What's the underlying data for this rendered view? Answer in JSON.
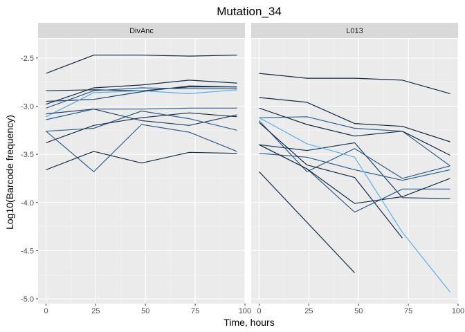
{
  "chart_data": {
    "type": "line",
    "title": "Mutation_34",
    "xlabel": "Time, hours",
    "ylabel": "Log10(Barcode frequency)",
    "xlim": [
      -4,
      100
    ],
    "ylim": [
      -5.05,
      -2.3
    ],
    "x_ticks": [
      0,
      25,
      50,
      75,
      100
    ],
    "y_ticks": [
      -2.5,
      -3.0,
      -3.5,
      -4.0,
      -4.5,
      -5.0
    ],
    "x_tick_labels": [
      "0",
      "25",
      "50",
      "75",
      "100"
    ],
    "y_tick_labels": [
      "-2.5",
      "-3.0",
      "-3.5",
      "-4.0",
      "-4.5",
      "-5.0"
    ],
    "grid": true,
    "legend": "none",
    "colors": {
      "panel_bg": "#ebebeb",
      "strip_bg": "#d9d9d9",
      "grid_major": "#ffffff",
      "dark_line": "#132b43",
      "mid_line": "#2d5e8a",
      "light_line": "#56b1f7"
    },
    "panels": [
      {
        "label": "DivAnc",
        "series": [
          {
            "color": "#132b43",
            "x": [
              0,
              24,
              48,
              72,
              96
            ],
            "y": [
              -2.66,
              -2.47,
              -2.47,
              -2.48,
              -2.47
            ]
          },
          {
            "color": "#132b43",
            "x": [
              0,
              24,
              48,
              72,
              96
            ],
            "y": [
              -2.84,
              -2.83,
              -2.84,
              -2.8,
              -2.8
            ]
          },
          {
            "color": "#132b43",
            "x": [
              0,
              24,
              48,
              72,
              96
            ],
            "y": [
              -2.98,
              -2.81,
              -2.78,
              -2.73,
              -2.76
            ]
          },
          {
            "color": "#1f4060",
            "x": [
              0,
              24,
              48,
              72,
              96
            ],
            "y": [
              -2.95,
              -2.93,
              -2.85,
              -2.79,
              -2.8
            ]
          },
          {
            "color": "#2d5e8a",
            "x": [
              0,
              24,
              48,
              72,
              96
            ],
            "y": [
              -3.02,
              -2.84,
              -2.81,
              -2.82,
              -2.82
            ]
          },
          {
            "color": "#5aa9e6",
            "x": [
              0,
              24,
              48,
              72,
              96
            ],
            "y": [
              -3.11,
              -2.86,
              -2.84,
              -2.87,
              -2.83
            ]
          },
          {
            "color": "#2d5e8a",
            "x": [
              0,
              24,
              48,
              72,
              96
            ],
            "y": [
              -3.14,
              -3.03,
              -3.03,
              -3.02,
              -3.02
            ]
          },
          {
            "color": "#1f4060",
            "x": [
              0,
              24,
              48,
              72,
              96
            ],
            "y": [
              -3.08,
              -3.03,
              -3.15,
              -3.2,
              -3.09
            ]
          },
          {
            "color": "#2d5e8a",
            "x": [
              0,
              24,
              48,
              72,
              96
            ],
            "y": [
              -3.26,
              -3.23,
              -3.05,
              -3.13,
              -3.25
            ]
          },
          {
            "color": "#132b43",
            "x": [
              0,
              24,
              48,
              72,
              96
            ],
            "y": [
              -3.38,
              -3.2,
              -3.12,
              -3.07,
              -3.11
            ]
          },
          {
            "color": "#2d5e8a",
            "x": [
              0,
              24,
              48,
              72,
              96
            ],
            "y": [
              -3.26,
              -3.68,
              -3.19,
              -3.27,
              -3.47
            ]
          },
          {
            "color": "#132b43",
            "x": [
              0,
              24,
              48,
              72,
              96
            ],
            "y": [
              -3.66,
              -3.47,
              -3.59,
              -3.48,
              -3.49
            ]
          }
        ]
      },
      {
        "label": "L013",
        "series": [
          {
            "color": "#132b43",
            "x": [
              0,
              24,
              48,
              72,
              96
            ],
            "y": [
              -2.66,
              -2.71,
              -2.71,
              -2.73,
              -2.87
            ]
          },
          {
            "color": "#132b43",
            "x": [
              0,
              24,
              48,
              72,
              96
            ],
            "y": [
              -2.91,
              -2.96,
              -3.18,
              -3.21,
              -3.37
            ]
          },
          {
            "color": "#2d5e8a",
            "x": [
              0,
              24,
              48,
              72,
              96
            ],
            "y": [
              -3.12,
              -3.11,
              -3.23,
              -3.26,
              -3.62
            ]
          },
          {
            "color": "#132b43",
            "x": [
              0,
              24,
              48,
              72,
              96
            ],
            "y": [
              -3.02,
              -3.19,
              -3.31,
              -3.26,
              -3.51
            ]
          },
          {
            "color": "#1f4060",
            "x": [
              0,
              24,
              48,
              72,
              96
            ],
            "y": [
              -3.4,
              -3.46,
              -3.38,
              -3.95,
              -3.96
            ]
          },
          {
            "color": "#2d5e8a",
            "x": [
              0,
              24,
              48,
              72,
              96
            ],
            "y": [
              -3.49,
              -3.53,
              -3.66,
              -3.77,
              -3.66
            ]
          },
          {
            "color": "#2d5e8a",
            "x": [
              0,
              24,
              48,
              72,
              96
            ],
            "y": [
              -3.15,
              -3.68,
              -3.44,
              -3.75,
              -3.62
            ]
          },
          {
            "color": "#132b43",
            "x": [
              0,
              24,
              48,
              72
            ],
            "y": [
              -3.17,
              -3.61,
              -3.74,
              -4.37
            ]
          },
          {
            "color": "#2d5e8a",
            "x": [
              0,
              24,
              48,
              72,
              96
            ],
            "y": [
              -3.4,
              -3.65,
              -4.1,
              -3.86,
              -3.86
            ]
          },
          {
            "color": "#132b43",
            "x": [
              0,
              24,
              48,
              72,
              96
            ],
            "y": [
              -3.4,
              -3.65,
              -4.01,
              -3.94,
              -3.75
            ]
          },
          {
            "color": "#56b1f7",
            "x": [
              0,
              24,
              48,
              72,
              96
            ],
            "y": [
              -3.12,
              -3.39,
              -3.53,
              -4.31,
              -4.93
            ]
          },
          {
            "color": "#132b43",
            "x": [
              0,
              48
            ],
            "y": [
              -3.68,
              -4.73
            ]
          }
        ]
      }
    ]
  }
}
